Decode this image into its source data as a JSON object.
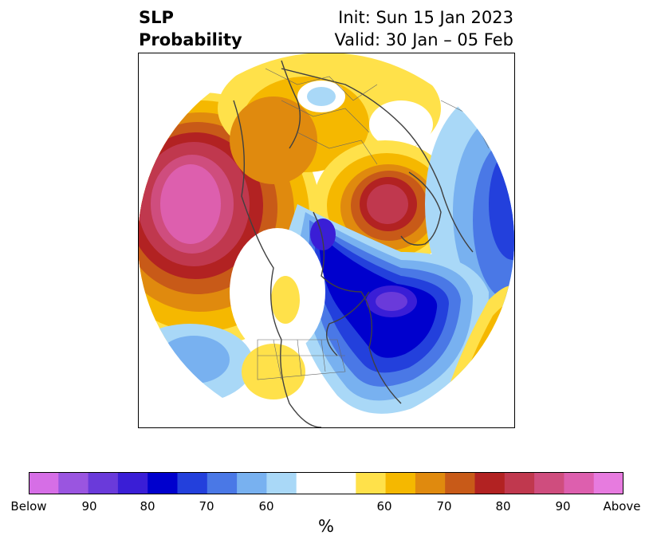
{
  "title": {
    "left_line1": "SLP",
    "left_line2": "Probability",
    "init": "Init: Sun 15 Jan 2023",
    "valid": "Valid: 30 Jan – 05 Feb"
  },
  "colorbar": {
    "unit": "%",
    "tick_labels": [
      "Below",
      "90",
      "80",
      "70",
      "60",
      "60",
      "70",
      "80",
      "90",
      "Above"
    ],
    "colors": [
      "#d66ee6",
      "#9a55e0",
      "#6a3ada",
      "#3a1ed6",
      "#0000cd",
      "#2340dc",
      "#4a78e6",
      "#78b1f0",
      "#a9d8f7",
      "#ffffff",
      "#ffe14a",
      "#f5b800",
      "#e08a0e",
      "#c85a18",
      "#b22222",
      "#c0384e",
      "#cf4d7e",
      "#dd5fae",
      "#e77bdf"
    ]
  },
  "map": {
    "projection": "north-polar-stereographic",
    "features": [
      "coastlines",
      "country-borders",
      "us-state-borders"
    ]
  }
}
